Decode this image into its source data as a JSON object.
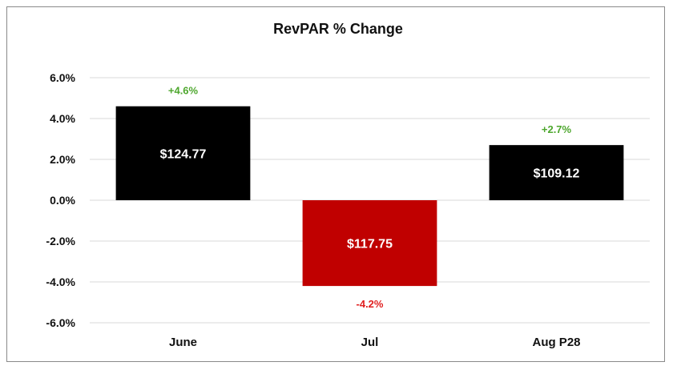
{
  "chart_data": {
    "type": "bar",
    "title": "RevPAR % Change",
    "categories": [
      "June",
      "Jul",
      "Aug P28"
    ],
    "values": [
      4.6,
      -4.2,
      2.7
    ],
    "bar_labels": [
      "$124.77",
      "$117.75",
      "$109.12"
    ],
    "change_labels": [
      "+4.6%",
      "-4.2%",
      "+2.7%"
    ],
    "ylim": [
      -6,
      6
    ],
    "yticks": [
      6,
      4,
      2,
      0,
      -2,
      -4,
      -6
    ],
    "ytick_labels": [
      "6.0%",
      "4.0%",
      "2.0%",
      "0.0%",
      "-2.0%",
      "-4.0%",
      "-6.0%"
    ],
    "xlabel": "",
    "ylabel": "",
    "grid": true,
    "colors": {
      "positive_bar": "#000000",
      "negative_bar": "#c00000",
      "positive_label": "#4ea72e",
      "negative_label": "#e02020"
    }
  }
}
